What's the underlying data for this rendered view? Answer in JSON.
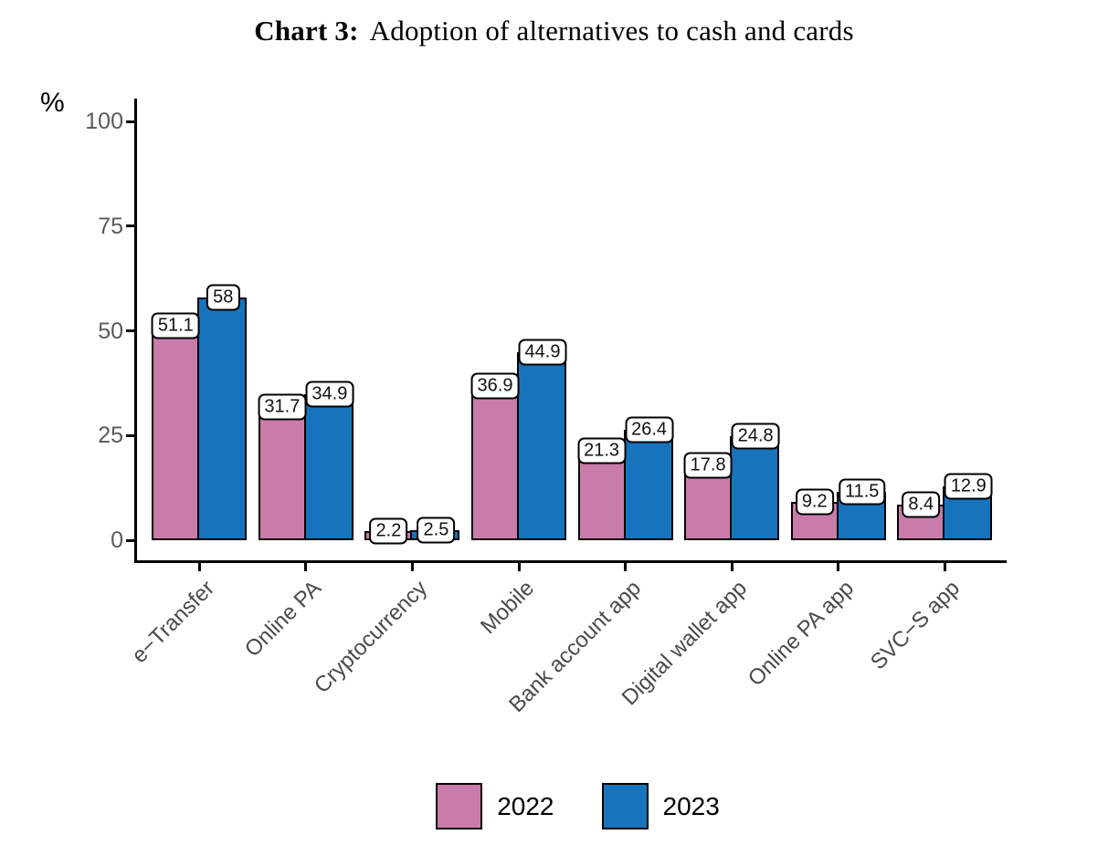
{
  "title": {
    "prefix": "Chart 3:",
    "text": "Adoption of alternatives to cash and cards"
  },
  "chart_data": {
    "type": "bar",
    "grouped": true,
    "title": "Chart 3: Adoption of alternatives to cash and cards",
    "categories": [
      "e−Transfer",
      "Online PA",
      "Cryptocurrency",
      "Mobile",
      "Bank account app",
      "Digital wallet app",
      "Online PA app",
      "SVC−S app"
    ],
    "series": [
      {
        "name": "2022",
        "color": "#C97CA9",
        "values": [
          51.1,
          31.7,
          2.2,
          36.9,
          21.3,
          17.8,
          9.2,
          8.4
        ]
      },
      {
        "name": "2023",
        "color": "#1774BC",
        "values": [
          58,
          34.9,
          2.5,
          44.9,
          26.4,
          24.8,
          11.5,
          12.9
        ]
      }
    ],
    "xlabel": "",
    "ylabel": "%",
    "ylim": [
      0,
      100
    ],
    "yticks": [
      0,
      25,
      50,
      75,
      100
    ],
    "grid": false,
    "bar_value_labels": true,
    "legend_position": "bottom",
    "x_label_rotation_deg": 45
  }
}
